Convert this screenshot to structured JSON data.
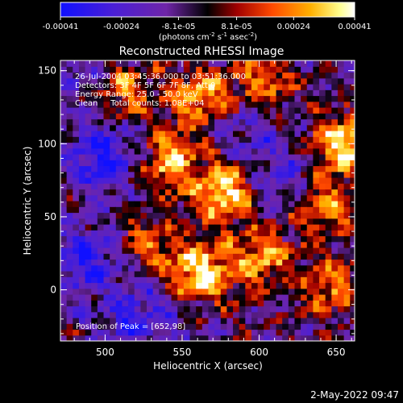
{
  "chart_data": {
    "type": "heatmap",
    "title": "Reconstructed RHESSI Image",
    "xlabel": "Heliocentric X (arcsec)",
    "ylabel": "Heliocentric Y (arcsec)",
    "xlim": [
      471,
      662
    ],
    "ylim": [
      -35,
      157
    ],
    "xticks": [
      500,
      550,
      600,
      650
    ],
    "yticks": [
      0,
      50,
      100,
      150
    ],
    "colorbar": {
      "range": [
        -0.00041,
        0.00041
      ],
      "tick_values": [
        -0.00041,
        -0.00024,
        -8.1e-05,
        8.1e-05,
        0.00024,
        0.00041
      ],
      "tick_labels": [
        "-0.00041",
        "-0.00024",
        "-8.1e-05",
        "8.1e-05",
        "0.00024",
        "0.00041"
      ],
      "units": "(photons cm",
      "units_sup1": "-2",
      "units_mid": " s",
      "units_sup2": "-1",
      "units_mid2": " asec",
      "units_sup3": "-2",
      "units_end": ")",
      "colors": [
        "#1010ff",
        "#4a1fd6",
        "#7a2aa0",
        "#000000",
        "#b00000",
        "#ff5a00",
        "#ffb000",
        "#ffffa0",
        "#ffffff"
      ]
    },
    "annotations": [
      "26-Jul-2004 03:45:36.000 to 03:51:36.000",
      "Detectors: 3F 4F 5F 6F 7F 8F, Att 0",
      "Energy Range: 25.0 - 50.0 keV",
      "Clean     Total counts: 1.08E+04"
    ],
    "peak_label": "Position of Peak = [652,98]",
    "peak": [
      652,
      98
    ],
    "bright_regions": [
      {
        "x": 560,
        "y": 10,
        "weight": 1.0
      },
      {
        "x": 575,
        "y": 65,
        "weight": 1.0
      },
      {
        "x": 560,
        "y": 130,
        "weight": 0.8
      },
      {
        "x": 652,
        "y": 98,
        "weight": 1.0
      },
      {
        "x": 640,
        "y": 55,
        "weight": 0.7
      },
      {
        "x": 600,
        "y": 20,
        "weight": 0.7
      },
      {
        "x": 540,
        "y": 85,
        "weight": 0.8
      },
      {
        "x": 510,
        "y": 135,
        "weight": 0.6
      },
      {
        "x": 645,
        "y": 0,
        "weight": 0.6
      },
      {
        "x": 600,
        "y": 140,
        "weight": 0.6
      },
      {
        "x": 525,
        "y": 30,
        "weight": 0.5
      }
    ],
    "dim_regions": [
      {
        "x": 495,
        "y": 90,
        "weight": 1.0
      },
      {
        "x": 485,
        "y": 20,
        "weight": 0.9
      },
      {
        "x": 520,
        "y": -20,
        "weight": 0.8
      },
      {
        "x": 615,
        "y": 75,
        "weight": 0.6
      },
      {
        "x": 590,
        "y": 110,
        "weight": 0.5
      },
      {
        "x": 480,
        "y": 150,
        "weight": 0.5
      }
    ]
  },
  "footer_timestamp": "2-May-2022 09:47"
}
